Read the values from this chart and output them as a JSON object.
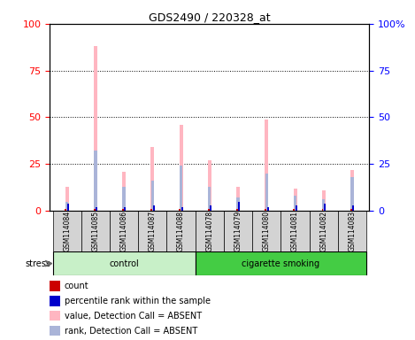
{
  "title": "GDS2490 / 220328_at",
  "samples": [
    "GSM114084",
    "GSM114085",
    "GSM114086",
    "GSM114087",
    "GSM114088",
    "GSM114078",
    "GSM114079",
    "GSM114080",
    "GSM114081",
    "GSM114082",
    "GSM114083"
  ],
  "groups": [
    {
      "label": "control",
      "color": "#c8f0c8",
      "samples": [
        "GSM114084",
        "GSM114085",
        "GSM114086",
        "GSM114087",
        "GSM114088"
      ]
    },
    {
      "label": "cigarette smoking",
      "color": "#44cc44",
      "samples": [
        "GSM114078",
        "GSM114079",
        "GSM114080",
        "GSM114081",
        "GSM114082",
        "GSM114083"
      ]
    }
  ],
  "stress_label": "stress",
  "value_absent": [
    13,
    88,
    21,
    34,
    46,
    27,
    13,
    49,
    12,
    11,
    22
  ],
  "rank_absent": [
    5,
    32,
    13,
    16,
    24,
    13,
    7,
    20,
    8,
    6,
    18
  ],
  "count": [
    1,
    1,
    1,
    1,
    1,
    1,
    1,
    1,
    1,
    1,
    1
  ],
  "percentile": [
    4,
    2,
    2,
    3,
    2,
    3,
    5,
    2,
    3,
    4,
    3
  ],
  "ylim": [
    0,
    100
  ],
  "yticks": [
    0,
    25,
    50,
    75,
    100
  ],
  "color_count": "#cc0000",
  "color_percentile": "#0000cc",
  "color_value_absent": "#FFB6C1",
  "color_rank_absent": "#aab4d8",
  "bg_color": "#d3d3d3",
  "legend_items": [
    {
      "label": "count",
      "color": "#cc0000"
    },
    {
      "label": "percentile rank within the sample",
      "color": "#0000cc"
    },
    {
      "label": "value, Detection Call = ABSENT",
      "color": "#FFB6C1"
    },
    {
      "label": "rank, Detection Call = ABSENT",
      "color": "#aab4d8"
    }
  ]
}
